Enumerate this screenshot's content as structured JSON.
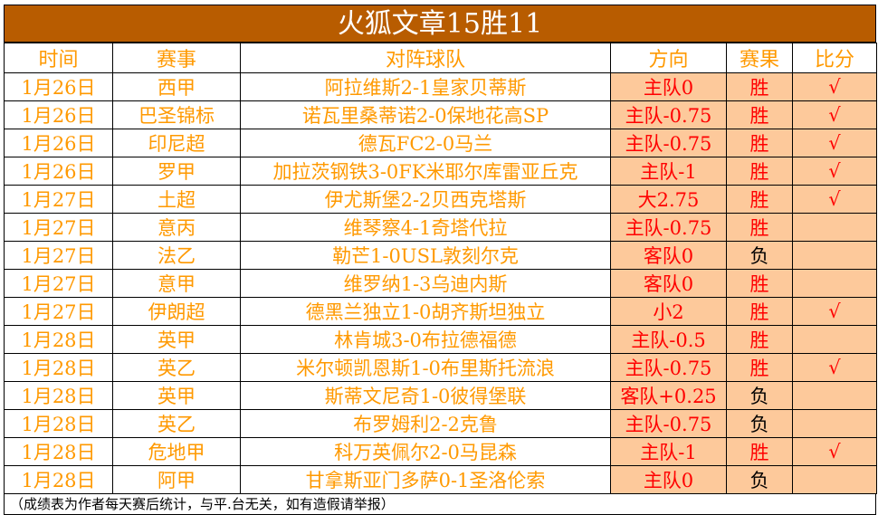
{
  "title": "火狐文章15胜11",
  "headers": [
    "时间",
    "赛事",
    "对阵球队",
    "方向",
    "赛果",
    "比分"
  ],
  "colors": {
    "title_bg": "#b85c00",
    "highlight_bg": "#fdc99b",
    "text_orange": "#ff9900",
    "text_red": "#ff0000"
  },
  "rows": [
    {
      "date": "1月26日",
      "league": "西甲",
      "match": "阿拉维斯2-1皇家贝蒂斯",
      "direction": "主队0",
      "result": "胜",
      "mark": "√"
    },
    {
      "date": "1月26日",
      "league": "巴圣锦标",
      "match": "诺瓦里桑蒂诺2-0保地花高SP",
      "direction": "主队-0.75",
      "result": "胜",
      "mark": "√"
    },
    {
      "date": "1月26日",
      "league": "印尼超",
      "match": "德瓦FC2-0马兰",
      "direction": "主队-0.75",
      "result": "胜",
      "mark": "√"
    },
    {
      "date": "1月26日",
      "league": "罗甲",
      "match": "加拉茨钢铁3-0FK米耶尔库雷亚丘克",
      "direction": "主队-1",
      "result": "胜",
      "mark": "√"
    },
    {
      "date": "1月27日",
      "league": "土超",
      "match": "伊尤斯堡2-2贝西克塔斯",
      "direction": "大2.75",
      "result": "胜",
      "mark": "√"
    },
    {
      "date": "1月27日",
      "league": "意丙",
      "match": "维琴察4-1奇塔代拉",
      "direction": "主队-0.75",
      "result": "胜",
      "mark": ""
    },
    {
      "date": "1月27日",
      "league": "法乙",
      "match": "勒芒1-0USL敦刻尔克",
      "direction": "客队0",
      "result": "负",
      "mark": ""
    },
    {
      "date": "1月27日",
      "league": "意甲",
      "match": "维罗纳1-3乌迪内斯",
      "direction": "客队0",
      "result": "胜",
      "mark": ""
    },
    {
      "date": "1月27日",
      "league": "伊朗超",
      "match": "德黑兰独立1-0胡齐斯坦独立",
      "direction": "小2",
      "result": "胜",
      "mark": "√"
    },
    {
      "date": "1月28日",
      "league": "英甲",
      "match": "林肯城3-0布拉德福德",
      "direction": "主队-0.5",
      "result": "胜",
      "mark": ""
    },
    {
      "date": "1月28日",
      "league": "英乙",
      "match": "米尔顿凯恩斯1-0布里斯托流浪",
      "direction": "主队-0.75",
      "result": "胜",
      "mark": "√"
    },
    {
      "date": "1月28日",
      "league": "英甲",
      "match": "斯蒂文尼奇1-0彼得堡联",
      "direction": "客队+0.25",
      "result": "负",
      "mark": ""
    },
    {
      "date": "1月28日",
      "league": "英乙",
      "match": "布罗姆利2-2克鲁",
      "direction": "主队-0.75",
      "result": "负",
      "mark": ""
    },
    {
      "date": "1月28日",
      "league": "危地甲",
      "match": "科万英佩尔2-0马昆森",
      "direction": "主队-1",
      "result": "胜",
      "mark": "√"
    },
    {
      "date": "1月28日",
      "league": "阿甲",
      "match": "甘拿斯亚门多萨0-1圣洛伦索",
      "direction": "主队0",
      "result": "负",
      "mark": ""
    }
  ],
  "footer": "（成绩表为作者每天赛后统计，与平.台无关，如有造假请举报）"
}
